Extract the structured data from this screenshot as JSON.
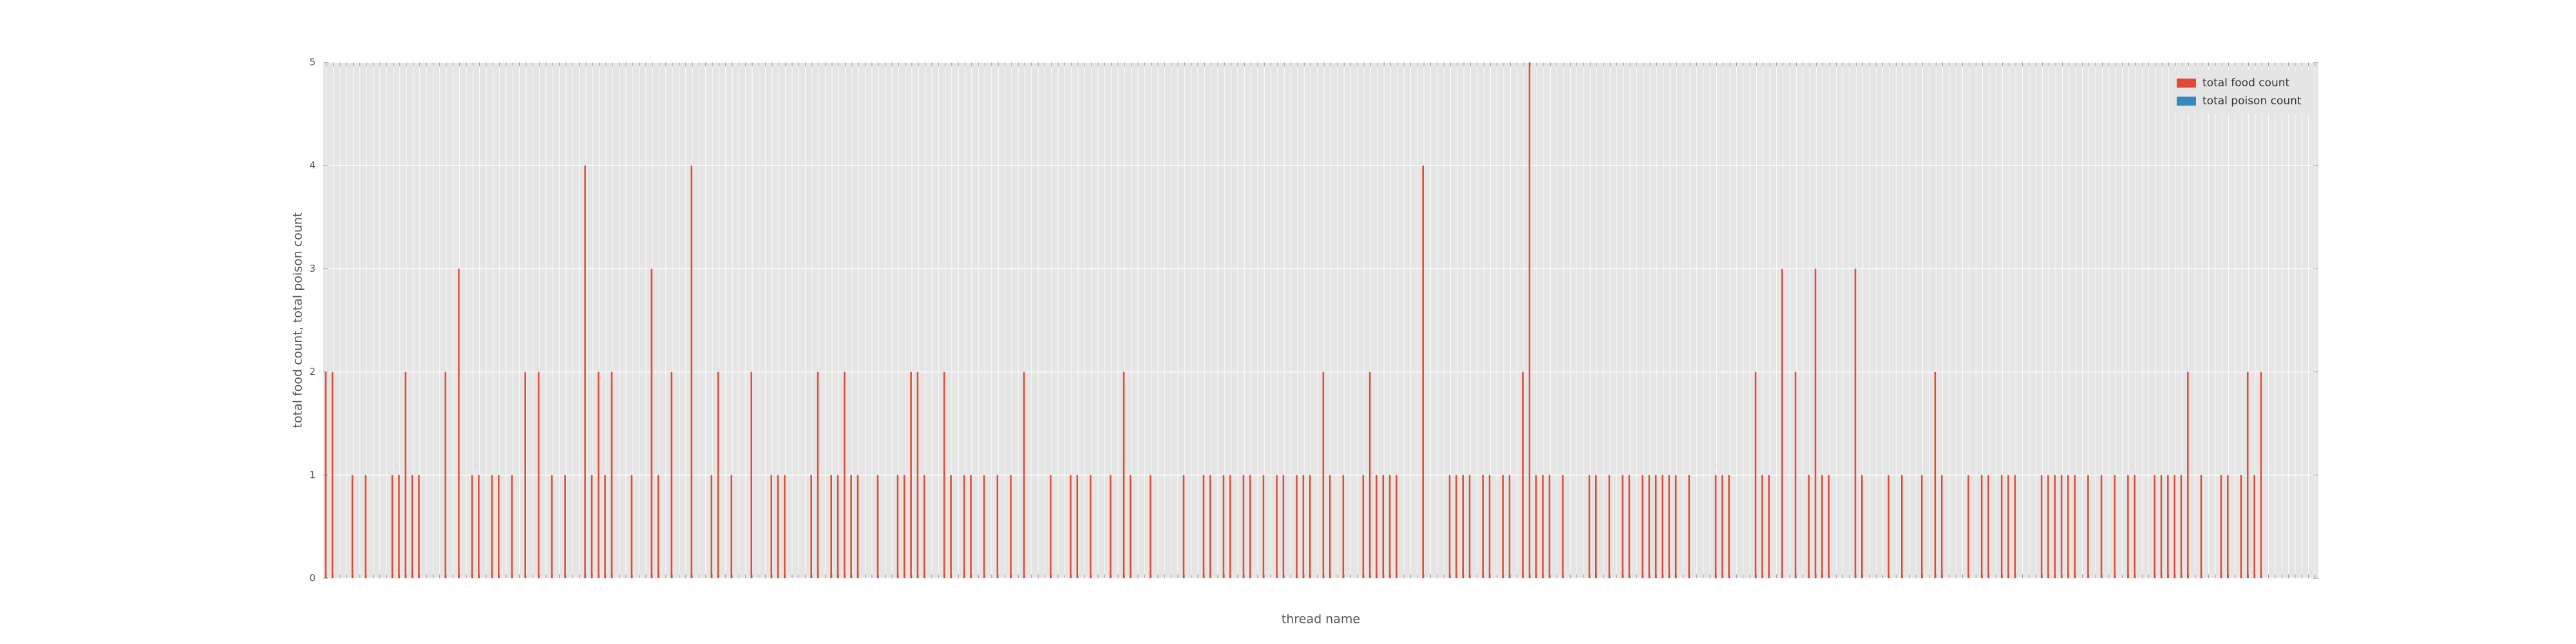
{
  "chart_data": {
    "type": "bar",
    "xlabel": "thread name",
    "ylabel": "total food count, total poison count",
    "ylim": [
      0,
      5
    ],
    "yticks": [
      0,
      1,
      2,
      3,
      4,
      5
    ],
    "grid": true,
    "legend": "upper right",
    "categories": [
      null,
      null,
      null,
      null,
      null,
      null,
      null,
      null,
      null,
      null,
      null,
      null,
      null,
      null,
      null,
      null,
      null,
      null,
      null,
      null,
      null,
      null,
      null,
      null,
      null,
      null,
      null,
      null,
      null,
      null,
      null,
      null,
      null,
      null,
      null,
      null,
      null,
      null,
      null,
      null,
      null,
      null,
      null,
      null,
      null,
      null,
      null,
      null,
      null,
      null,
      null,
      null,
      null,
      null,
      null,
      null,
      null,
      null,
      null,
      null,
      null,
      null,
      null,
      null,
      null,
      null,
      null,
      null,
      null,
      null,
      null,
      null,
      null,
      null,
      null,
      null,
      null,
      null,
      null,
      null,
      null,
      null,
      null,
      null,
      null,
      null,
      null,
      null,
      null,
      null,
      null,
      null,
      null,
      null,
      null,
      null,
      null,
      null,
      null,
      null,
      null,
      null,
      null,
      null,
      null,
      null,
      null,
      null,
      null,
      null,
      null,
      null,
      null,
      null,
      null,
      null,
      null,
      null,
      null,
      null,
      null,
      null,
      null,
      null,
      null,
      null,
      null,
      null,
      null,
      null,
      null,
      null,
      null,
      null,
      null,
      null,
      null,
      null,
      null,
      null,
      null,
      null,
      null,
      null,
      null,
      null,
      null,
      null,
      null,
      null,
      null,
      null,
      null,
      null,
      null,
      null,
      null,
      null,
      null,
      null,
      null,
      null,
      null,
      null,
      null,
      null,
      null,
      null,
      null,
      null,
      null,
      null,
      null,
      null,
      null,
      null,
      null,
      null,
      null,
      null,
      null,
      null,
      null,
      null,
      null,
      null,
      null,
      null,
      null,
      null,
      null,
      null,
      null,
      null,
      null,
      null,
      null,
      null,
      null,
      null,
      null,
      null,
      null,
      null,
      null,
      null,
      null,
      null,
      null,
      null,
      null,
      null,
      null,
      null,
      null,
      null,
      null,
      null,
      null,
      null,
      null,
      null,
      null,
      null,
      null,
      null,
      null,
      null,
      null,
      null,
      null,
      null,
      null,
      null,
      null,
      null,
      null,
      null,
      null,
      null,
      null,
      null,
      null,
      null,
      null,
      null,
      null,
      null,
      null,
      null,
      null,
      null,
      null,
      null,
      null,
      null,
      null,
      null,
      null,
      null,
      null,
      null,
      null,
      null,
      null,
      null,
      null,
      null,
      null,
      null,
      null,
      null,
      null,
      null,
      null,
      null,
      null,
      null,
      null,
      null,
      null,
      null,
      null,
      null,
      null,
      null,
      null,
      null,
      null,
      null,
      null,
      null,
      null,
      null,
      null,
      null,
      null,
      null,
      null,
      null
    ],
    "series": [
      {
        "name": "total food count",
        "color": "#E24A33",
        "values": [
          2,
          2,
          0,
          0,
          1,
          0,
          1,
          0,
          0,
          0,
          1,
          1,
          2,
          1,
          1,
          0,
          0,
          0,
          2,
          0,
          3,
          0,
          1,
          1,
          0,
          1,
          1,
          0,
          1,
          0,
          2,
          0,
          2,
          0,
          1,
          0,
          1,
          0,
          0,
          4,
          1,
          2,
          1,
          2,
          0,
          0,
          1,
          0,
          0,
          3,
          1,
          0,
          2,
          0,
          0,
          4,
          0,
          0,
          1,
          2,
          0,
          1,
          0,
          0,
          2,
          0,
          0,
          1,
          1,
          1,
          0,
          0,
          0,
          1,
          2,
          0,
          1,
          1,
          2,
          1,
          1,
          0,
          0,
          1,
          0,
          0,
          1,
          1,
          2,
          2,
          1,
          0,
          0,
          2,
          1,
          0,
          1,
          1,
          0,
          1,
          0,
          1,
          0,
          1,
          0,
          2,
          0,
          0,
          0,
          1,
          0,
          0,
          1,
          1,
          0,
          1,
          0,
          0,
          1,
          0,
          2,
          1,
          0,
          0,
          1,
          0,
          0,
          0,
          0,
          1,
          0,
          0,
          1,
          1,
          0,
          1,
          1,
          0,
          1,
          1,
          0,
          1,
          0,
          1,
          1,
          0,
          1,
          1,
          1,
          0,
          2,
          1,
          0,
          1,
          0,
          0,
          1,
          2,
          1,
          1,
          1,
          1,
          0,
          0,
          0,
          4,
          0,
          0,
          0,
          1,
          1,
          1,
          1,
          0,
          1,
          1,
          0,
          1,
          1,
          0,
          2,
          5,
          1,
          1,
          1,
          0,
          1,
          0,
          0,
          0,
          1,
          1,
          0,
          1,
          0,
          1,
          1,
          0,
          1,
          1,
          1,
          1,
          1,
          1,
          0,
          1,
          0,
          0,
          0,
          1,
          1,
          1,
          0,
          0,
          0,
          2,
          1,
          1,
          0,
          3,
          0,
          2,
          0,
          1,
          3,
          1,
          1,
          0,
          0,
          0,
          3,
          1,
          0,
          0,
          0,
          1,
          0,
          1,
          0,
          0,
          1,
          0,
          2,
          1,
          0,
          0,
          0,
          1,
          0,
          1,
          1,
          0,
          1,
          1,
          1,
          0,
          0,
          0,
          1,
          1,
          1,
          1,
          1,
          1,
          0,
          1,
          0,
          1,
          0,
          1,
          0,
          1,
          1,
          0,
          0,
          1,
          1,
          1,
          1,
          1,
          2,
          0,
          1,
          0,
          0,
          1,
          1,
          0,
          1,
          2,
          1,
          2,
          0,
          0,
          0,
          0,
          0,
          0,
          0,
          0
        ]
      },
      {
        "name": "total poison count",
        "color": "#348ABD",
        "values": [
          0,
          0,
          0,
          0,
          0,
          0,
          0,
          0,
          0,
          0,
          0,
          0,
          0,
          0,
          0,
          0,
          0,
          0,
          0,
          0,
          0,
          0,
          0,
          0,
          0,
          0,
          0,
          0,
          0,
          0,
          0,
          0,
          0,
          0,
          0,
          0,
          0,
          0,
          0,
          0,
          0,
          0,
          0,
          0,
          0,
          0,
          0,
          0,
          0,
          0,
          0,
          0,
          0,
          0,
          0,
          0,
          0,
          0,
          0,
          0,
          0,
          0,
          0,
          0,
          0,
          0,
          0,
          0,
          0,
          0,
          0,
          0,
          0,
          0,
          0,
          0,
          0,
          0,
          0,
          0,
          0,
          0,
          0,
          0,
          0,
          0,
          0,
          0,
          0,
          0,
          0,
          0,
          0,
          0,
          0,
          0,
          0,
          0,
          0,
          0,
          0,
          0,
          0,
          0,
          0,
          0,
          0,
          0,
          0,
          0,
          0,
          0,
          0,
          0,
          0,
          0,
          0,
          0,
          0,
          0,
          0,
          0,
          0,
          0,
          0,
          0,
          0,
          0,
          0,
          0,
          0,
          0,
          0,
          0,
          0,
          0,
          0,
          0,
          0,
          0,
          0,
          0,
          0,
          0,
          0,
          0,
          0,
          0,
          0,
          0,
          0,
          0,
          0,
          0,
          0,
          0,
          0,
          0,
          0,
          0,
          0,
          0,
          0,
          0,
          0,
          0,
          0,
          0,
          0,
          0,
          0,
          0,
          0,
          0,
          0,
          0,
          0,
          0,
          0,
          0,
          0,
          0,
          0,
          0,
          0,
          0,
          0,
          0,
          0,
          0,
          0,
          0,
          0,
          0,
          0,
          0,
          0,
          0,
          0,
          0,
          0,
          0,
          0,
          0,
          0,
          0,
          0,
          0,
          0,
          0,
          0,
          0,
          0,
          0,
          0,
          0,
          0,
          0,
          0,
          0,
          0,
          0,
          0,
          0,
          0,
          0,
          0,
          0,
          0,
          0,
          0,
          0,
          0,
          0,
          0,
          0,
          0,
          0,
          0,
          0,
          0,
          0,
          0,
          0,
          0,
          0,
          0,
          0,
          0,
          0,
          0,
          0,
          0,
          0,
          0,
          0,
          0,
          0,
          0,
          0,
          0,
          0,
          0,
          0,
          0,
          0,
          0,
          0,
          0,
          0,
          0,
          0,
          0,
          0,
          0,
          0,
          0,
          0,
          0,
          0,
          0,
          0,
          0,
          0,
          0,
          0,
          0,
          0,
          0,
          0,
          0,
          0,
          0,
          0,
          0,
          0,
          0,
          0,
          0,
          0
        ]
      }
    ]
  }
}
